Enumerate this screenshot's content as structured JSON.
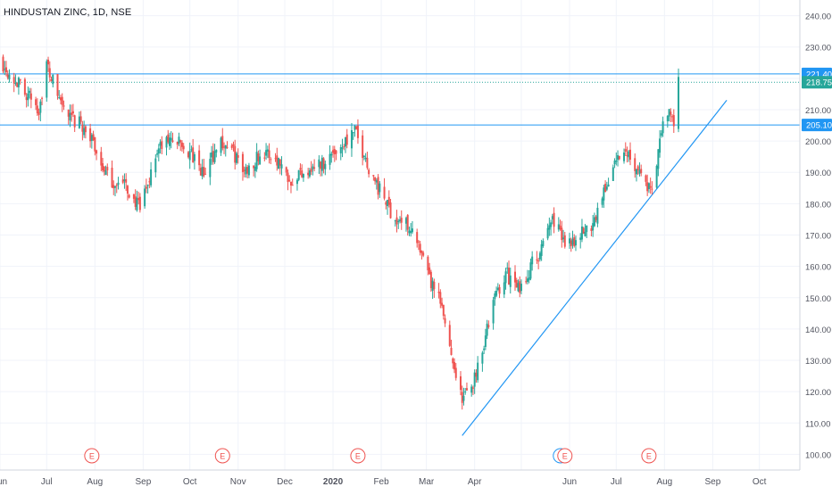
{
  "chart_data": {
    "type": "candlestick",
    "title": "HINDUSTAN ZINC, 1D, NSE",
    "ylim": [
      95,
      245
    ],
    "y_ticks": [
      "240.00",
      "230.00",
      "220.00",
      "210.00",
      "200.00",
      "190.00",
      "180.00",
      "170.00",
      "160.00",
      "150.00",
      "140.00",
      "130.00",
      "120.00",
      "110.00",
      "100.00"
    ],
    "x_ticks": [
      "Jun",
      "Jul",
      "Aug",
      "Sep",
      "Oct",
      "Nov",
      "Dec",
      "2020",
      "Feb",
      "Mar",
      "Apr",
      "May",
      "Jun",
      "Jul",
      "Aug",
      "Sep",
      "Oct"
    ],
    "x_start": "2019-06-01",
    "x_end": "2020-10-27",
    "colors": {
      "up": "#26a69a",
      "down": "#ef5350",
      "level_line": "#2196f3",
      "grid": "#f0f3fa",
      "axis_text": "#50535e",
      "event": "#ef5350"
    },
    "levels": [
      {
        "label": "221.40",
        "value": 221.4,
        "style": "solid"
      },
      {
        "label": "218.75",
        "value": 218.75,
        "style": "dotted",
        "color": "#26a69a"
      },
      {
        "label": "205.10",
        "value": 205.1,
        "style": "solid"
      }
    ],
    "trendline": {
      "from": {
        "date": "2020-03-24",
        "value": 106
      },
      "to": {
        "date": "2020-09-10",
        "value": 213
      }
    },
    "events": [
      {
        "label": "E",
        "date": "2019-07-30"
      },
      {
        "label": "E",
        "date": "2019-10-22"
      },
      {
        "label": "E",
        "date": "2020-01-17"
      },
      {
        "label": "E",
        "date": "2020-05-29",
        "dividend_marker": true
      },
      {
        "label": "E",
        "date": "2020-07-22"
      }
    ],
    "price_path": [
      [
        "2019-06-01",
        226
      ],
      [
        "2019-06-10",
        220
      ],
      [
        "2019-06-20",
        214
      ],
      [
        "2019-06-26",
        210
      ],
      [
        "2019-07-01",
        224
      ],
      [
        "2019-07-08",
        215
      ],
      [
        "2019-07-15",
        207
      ],
      [
        "2019-07-24",
        205
      ],
      [
        "2019-08-01",
        198
      ],
      [
        "2019-08-10",
        187
      ],
      [
        "2019-08-20",
        186
      ],
      [
        "2019-08-30",
        178
      ],
      [
        "2019-09-10",
        197
      ],
      [
        "2019-09-20",
        201
      ],
      [
        "2019-10-01",
        196
      ],
      [
        "2019-10-10",
        189
      ],
      [
        "2019-10-20",
        200
      ],
      [
        "2019-10-28",
        197
      ],
      [
        "2019-11-05",
        190
      ],
      [
        "2019-11-15",
        196
      ],
      [
        "2019-11-25",
        195
      ],
      [
        "2019-12-05",
        188
      ],
      [
        "2019-12-15",
        191
      ],
      [
        "2019-12-25",
        193
      ],
      [
        "2020-01-05",
        198
      ],
      [
        "2020-01-15",
        203
      ],
      [
        "2020-01-22",
        194
      ],
      [
        "2020-01-30",
        185
      ],
      [
        "2020-02-10",
        175
      ],
      [
        "2020-02-20",
        173
      ],
      [
        "2020-03-01",
        158
      ],
      [
        "2020-03-10",
        148
      ],
      [
        "2020-03-16",
        135
      ],
      [
        "2020-03-24",
        117
      ],
      [
        "2020-03-31",
        123
      ],
      [
        "2020-04-07",
        136
      ],
      [
        "2020-04-14",
        150
      ],
      [
        "2020-04-21",
        158
      ],
      [
        "2020-04-30",
        152
      ],
      [
        "2020-05-07",
        160
      ],
      [
        "2020-05-14",
        165
      ],
      [
        "2020-05-21",
        176
      ],
      [
        "2020-05-28",
        168
      ],
      [
        "2020-06-05",
        169
      ],
      [
        "2020-06-15",
        173
      ],
      [
        "2020-06-22",
        182
      ],
      [
        "2020-06-30",
        193
      ],
      [
        "2020-07-08",
        197
      ],
      [
        "2020-07-15",
        191
      ],
      [
        "2020-07-24",
        183
      ],
      [
        "2020-07-31",
        206
      ],
      [
        "2020-08-05",
        209
      ],
      [
        "2020-08-07",
        205
      ],
      [
        "2020-08-10",
        219
      ]
    ]
  }
}
